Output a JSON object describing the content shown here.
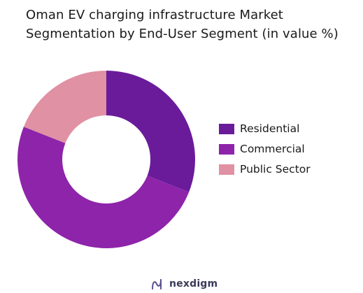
{
  "chart_data": {
    "type": "pie",
    "variant": "donut",
    "title_lines": [
      "Oman EV charging infrastructure Market",
      "Segmentation by End-User Segment (in value %)"
    ],
    "categories": [
      "Residential",
      "Commercial",
      "Public Sector"
    ],
    "values": [
      31,
      50,
      19
    ],
    "colors": [
      "#6a1b9a",
      "#8e24aa",
      "#e091a3"
    ],
    "legend_position": "right",
    "start_angle_deg": 0,
    "direction": "clockwise"
  },
  "footer": {
    "brand": "nexdigm",
    "brand_icon": "nexdigm-logo-icon"
  }
}
